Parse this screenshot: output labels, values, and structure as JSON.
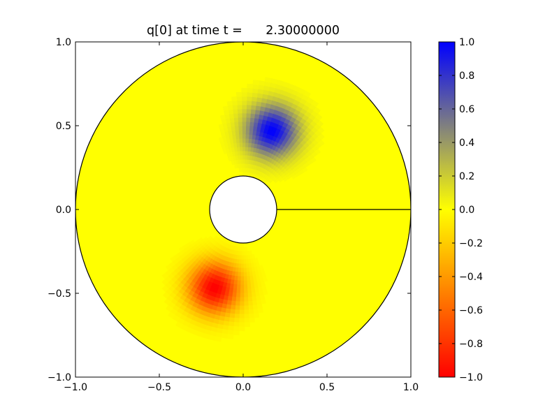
{
  "chart_data": {
    "type": "heatmap",
    "title": "q[0] at time t =      2.30000000",
    "geometry": "annulus",
    "annulus": {
      "r_inner": 0.2,
      "r_outer": 1.0,
      "seam_angle_deg": 0
    },
    "xlim": [
      -1.0,
      1.0
    ],
    "ylim": [
      -1.0,
      1.0
    ],
    "x_ticks": [
      "−1.0",
      "−0.5",
      "0.0",
      "0.5",
      "1.0"
    ],
    "y_ticks": [
      "−1.0",
      "−0.5",
      "0.0",
      "0.5",
      "1.0"
    ],
    "x_tick_values": [
      -1.0,
      -0.5,
      0.0,
      0.5,
      1.0
    ],
    "y_tick_values": [
      -1.0,
      -0.5,
      0.0,
      0.5,
      1.0
    ],
    "grid": false,
    "field_background": 0.0,
    "features": [
      {
        "x": 0.17,
        "y": 0.47,
        "value": 1.0,
        "sigma": 0.11
      },
      {
        "x": -0.17,
        "y": -0.47,
        "value": -1.0,
        "sigma": 0.11
      }
    ],
    "colorbar": {
      "min": -1.0,
      "max": 1.0,
      "tick_values": [
        -1.0,
        -0.8,
        -0.6,
        -0.4,
        -0.2,
        0.0,
        0.2,
        0.4,
        0.6,
        0.8,
        1.0
      ],
      "tick_labels": [
        "−1.0",
        "−0.8",
        "−0.6",
        "−0.4",
        "−0.2",
        "0.0",
        "0.2",
        "0.4",
        "0.6",
        "0.8",
        "1.0"
      ],
      "colors": [
        {
          "value": -1.0,
          "color": "#ff0000"
        },
        {
          "value": 0.0,
          "color": "#ffff00"
        },
        {
          "value": 1.0,
          "color": "#0000ff"
        }
      ]
    }
  }
}
